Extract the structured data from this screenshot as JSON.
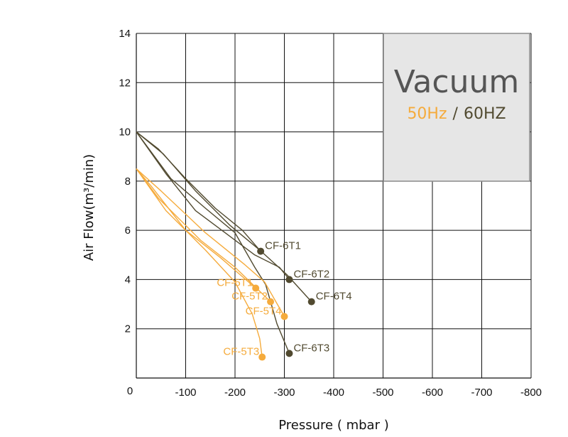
{
  "chart_data": {
    "type": "line",
    "xlabel": "Pressure ( mbar )",
    "ylabel": "Air Flow(m³/min)",
    "xlim": [
      0,
      -800
    ],
    "ylim": [
      0,
      14
    ],
    "x_ticks": [
      "0",
      "-100",
      "-200",
      "-300",
      "-400",
      "-500",
      "-600",
      "-700",
      "-800"
    ],
    "y_ticks": [
      "2",
      "4",
      "6",
      "8",
      "10",
      "12",
      "14"
    ],
    "grid": true,
    "colors": {
      "hz50": "#f5ab3c",
      "hz60": "#514a30",
      "panel_fill": "#e6e6e6",
      "panel_border": "#8c8c8c",
      "panel_title": "#555555"
    },
    "panel": {
      "title": "Vacuum",
      "sub_50": "50Hz",
      "sub_sep": "/",
      "sub_60": "60HZ"
    },
    "series": [
      {
        "name": "CF-6T1",
        "group": "60",
        "points": [
          [
            0,
            10
          ],
          [
            -45,
            9.3
          ],
          [
            -100,
            8.1
          ],
          [
            -160,
            6.9
          ],
          [
            -215,
            6.0
          ],
          [
            -252,
            5.15
          ]
        ]
      },
      {
        "name": "CF-6T2",
        "group": "60",
        "points": [
          [
            0,
            10
          ],
          [
            -60,
            8.3
          ],
          [
            -120,
            6.8
          ],
          [
            -180,
            5.9
          ],
          [
            -240,
            5.0
          ],
          [
            -290,
            4.5
          ],
          [
            -310,
            4.0
          ]
        ]
      },
      {
        "name": "CF-6T4",
        "group": "60",
        "points": [
          [
            0,
            10
          ],
          [
            -55,
            9.1
          ],
          [
            -120,
            7.6
          ],
          [
            -190,
            6.2
          ],
          [
            -250,
            5.2
          ],
          [
            -305,
            4.2
          ],
          [
            -355,
            3.1
          ]
        ]
      },
      {
        "name": "CF-6T3",
        "group": "60",
        "points": [
          [
            0,
            10
          ],
          [
            -70,
            8.1
          ],
          [
            -140,
            6.9
          ],
          [
            -200,
            5.9
          ],
          [
            -240,
            4.5
          ],
          [
            -262,
            3.8
          ],
          [
            -285,
            2.2
          ],
          [
            -310,
            1.0
          ]
        ]
      },
      {
        "name": "CF-5T1",
        "group": "50",
        "points": [
          [
            0,
            8.5
          ],
          [
            -30,
            7.8
          ],
          [
            -100,
            6.0
          ],
          [
            -170,
            4.9
          ],
          [
            -242,
            3.65
          ]
        ]
      },
      {
        "name": "CF-5T2",
        "group": "50",
        "points": [
          [
            0,
            8.5
          ],
          [
            -45,
            7.3
          ],
          [
            -130,
            5.6
          ],
          [
            -200,
            4.5
          ],
          [
            -272,
            3.1
          ]
        ]
      },
      {
        "name": "CF-5T4",
        "group": "50",
        "points": [
          [
            0,
            8.5
          ],
          [
            -50,
            7.6
          ],
          [
            -140,
            5.9
          ],
          [
            -220,
            4.6
          ],
          [
            -260,
            3.9
          ],
          [
            -300,
            2.5
          ]
        ]
      },
      {
        "name": "CF-5T3",
        "group": "50",
        "points": [
          [
            0,
            8.5
          ],
          [
            -60,
            6.8
          ],
          [
            -140,
            5.2
          ],
          [
            -200,
            3.9
          ],
          [
            -235,
            2.6
          ],
          [
            -250,
            1.6
          ],
          [
            -255,
            0.85
          ]
        ]
      }
    ],
    "labels": [
      {
        "text": "CF-6T1",
        "series": "CF-6T1",
        "group": "60",
        "anchor": "start"
      },
      {
        "text": "CF-6T2",
        "series": "CF-6T2",
        "group": "60",
        "anchor": "start"
      },
      {
        "text": "CF-6T4",
        "series": "CF-6T4",
        "group": "60",
        "anchor": "start"
      },
      {
        "text": "CF-6T3",
        "series": "CF-6T3",
        "group": "60",
        "anchor": "start"
      },
      {
        "text": "CF-5T1",
        "series": "CF-5T1",
        "group": "50",
        "anchor": "end"
      },
      {
        "text": "CF-5T2",
        "series": "CF-5T2",
        "group": "50",
        "anchor": "end"
      },
      {
        "text": "CF-5T4",
        "series": "CF-5T4",
        "group": "50",
        "anchor": "end"
      },
      {
        "text": "CF-5T3",
        "series": "CF-5T3",
        "group": "50",
        "anchor": "end"
      }
    ]
  }
}
